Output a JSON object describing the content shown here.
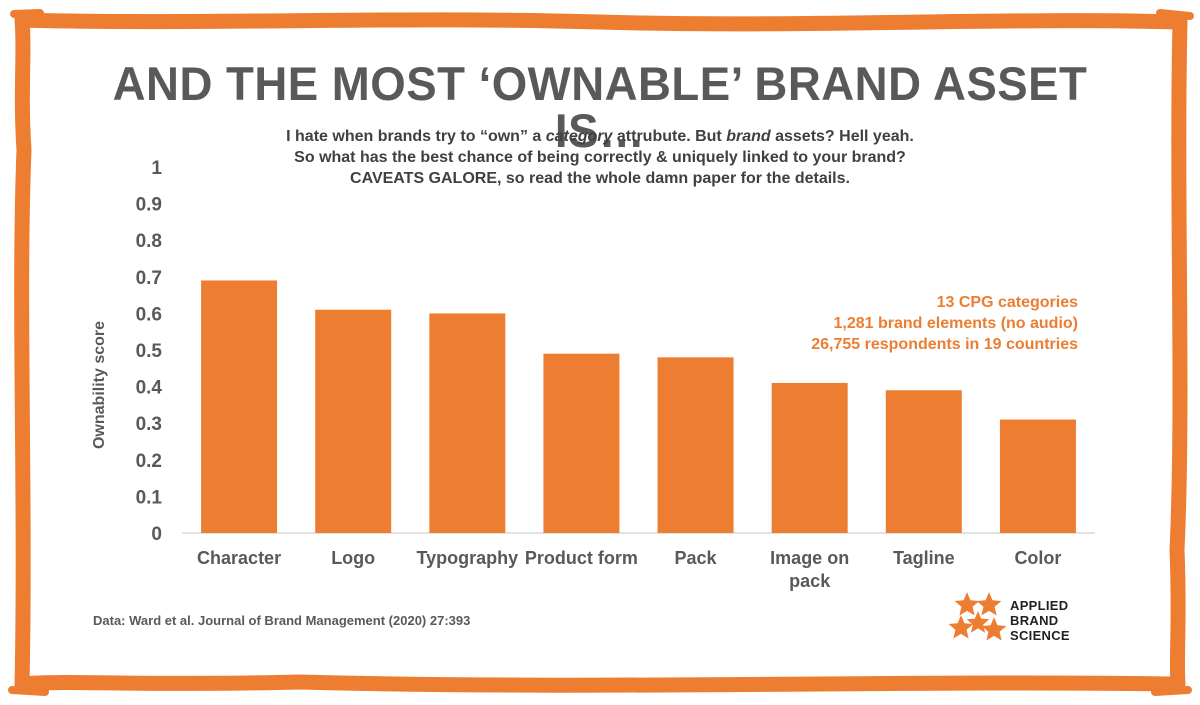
{
  "headline": "AND THE MOST ‘OWNABLE’ BRAND ASSET IS…",
  "subtitle": {
    "line1_a": "I hate when brands try to “own” a ",
    "line1_b": "category",
    "line1_c": " attrubute. But ",
    "line1_d": "brand",
    "line1_e": " assets? Hell yeah.",
    "line2": "So what has the best chance of being correctly & uniquely linked to your brand?",
    "line3": "CAVEATS GALORE, so read the whole damn paper for the details."
  },
  "stats": [
    "13 CPG categories",
    "1,281 brand elements (no audio)",
    "26,755 respondents in 19 countries"
  ],
  "source": "Data: Ward et al. Journal of Brand Management (2020) 27:393",
  "logo": {
    "icon": "stars-icon",
    "lines": [
      "APPLIED",
      "BRAND",
      "SCIENCE"
    ]
  },
  "colors": {
    "accent": "#ed7d31",
    "frame": "#ed7d31",
    "headline": "#58595b",
    "axis_text": "#595959"
  },
  "chart_data": {
    "type": "bar",
    "categories": [
      "Character",
      "Logo",
      "Typography",
      "Product form",
      "Pack",
      "Image on pack",
      "Tagline",
      "Color"
    ],
    "category_lines": [
      [
        "Character"
      ],
      [
        "Logo"
      ],
      [
        "Typography"
      ],
      [
        "Product form"
      ],
      [
        "Pack"
      ],
      [
        "Image on",
        "pack"
      ],
      [
        "Tagline"
      ],
      [
        "Color"
      ]
    ],
    "values": [
      0.69,
      0.61,
      0.6,
      0.49,
      0.48,
      0.41,
      0.39,
      0.31
    ],
    "ylabel": "Ownability score",
    "xlabel": "",
    "ylim": [
      0,
      1
    ],
    "yticks": [
      0,
      0.1,
      0.2,
      0.3,
      0.4,
      0.5,
      0.6,
      0.7,
      0.8,
      0.9,
      1
    ],
    "ytick_labels": [
      "0",
      "0.1",
      "0.2",
      "0.3",
      "0.4",
      "0.5",
      "0.6",
      "0.7",
      "0.8",
      "0.9",
      "1"
    ],
    "grid": false,
    "bar_color": "#ed7d31"
  }
}
